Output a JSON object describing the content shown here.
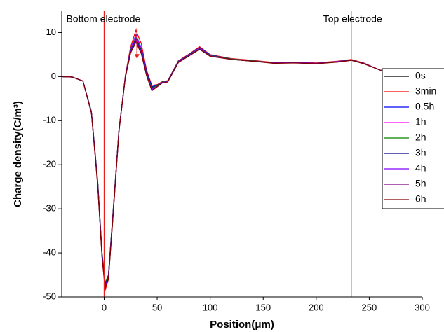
{
  "chart_data": {
    "type": "line",
    "xlabel": "Position(μm)",
    "ylabel": "Charge density(C/m³)",
    "xlim": [
      -40,
      300
    ],
    "ylim": [
      -50,
      15
    ],
    "xticks": [
      0,
      50,
      100,
      150,
      200,
      250,
      300
    ],
    "yticks": [
      -50,
      -40,
      -30,
      -20,
      -10,
      0,
      10
    ],
    "legend": "right",
    "annotations": [
      {
        "text": "Bottom electrode",
        "x": 0,
        "color": "#e8201c"
      },
      {
        "text": "Top electrode",
        "x": 233,
        "color": "#e8201c"
      }
    ],
    "arrow": {
      "x": 31,
      "y_from": 11,
      "y_to": 4,
      "color": "#e8201c"
    },
    "x": [
      -40,
      -30,
      -20,
      -12,
      -6,
      -2,
      1,
      4,
      8,
      14,
      20,
      25,
      30,
      35,
      40,
      45,
      50,
      55,
      60,
      70,
      80,
      90,
      100,
      120,
      140,
      160,
      180,
      200,
      220,
      233,
      245,
      260,
      280,
      300
    ],
    "series": [
      {
        "name": "0s",
        "color": "#000000",
        "values": [
          0,
          -0.1,
          -1,
          -8,
          -24,
          -40,
          -47,
          -45,
          -32,
          -12,
          0,
          6,
          9,
          6,
          1,
          -2.5,
          -2,
          -1.2,
          -1,
          3.5,
          5,
          6.5,
          4.8,
          4,
          3.6,
          3.1,
          3.2,
          3,
          3.4,
          3.8,
          3,
          1.5,
          0.4,
          0.2
        ]
      },
      {
        "name": "3min",
        "color": "#ff0000",
        "values": [
          0,
          -0.1,
          -1,
          -8.3,
          -25,
          -41,
          -48.5,
          -46,
          -33,
          -12.5,
          0.3,
          6.8,
          10.5,
          7.5,
          1.5,
          -2,
          -1.8,
          -1.1,
          -0.9,
          3.6,
          5.1,
          6.8,
          5,
          4.1,
          3.7,
          3.2,
          3.3,
          3.1,
          3.5,
          3.9,
          3.1,
          1.5,
          0.4,
          0.2
        ]
      },
      {
        "name": "0.5h",
        "color": "#0000ff",
        "values": [
          0,
          -0.1,
          -1,
          -8.1,
          -24.5,
          -40.5,
          -47.5,
          -45.5,
          -32.5,
          -12.2,
          0.1,
          6.3,
          9.5,
          6.5,
          1.2,
          -2.3,
          -1.9,
          -1.2,
          -1,
          3.5,
          5,
          6.6,
          4.9,
          4,
          3.6,
          3.1,
          3.2,
          3,
          3.4,
          3.8,
          3,
          1.5,
          0.4,
          0.2
        ]
      },
      {
        "name": "1h",
        "color": "#ff00ff",
        "values": [
          0,
          -0.1,
          -1,
          -8,
          -24.2,
          -40.2,
          -47,
          -45.2,
          -32.2,
          -12,
          0,
          6.1,
          9.2,
          6.2,
          0.8,
          -2.8,
          -2.1,
          -1.3,
          -1.1,
          3.4,
          4.9,
          6.5,
          4.8,
          4,
          3.6,
          3.1,
          3.2,
          3,
          3.4,
          3.8,
          3,
          1.5,
          0.4,
          0.2
        ]
      },
      {
        "name": "2h",
        "color": "#008000",
        "values": [
          0,
          -0.1,
          -1,
          -7.9,
          -24,
          -40,
          -46.8,
          -45,
          -32,
          -11.9,
          0,
          6,
          8.8,
          6,
          0.7,
          -2.6,
          -2,
          -1.2,
          -1,
          3.4,
          4.9,
          6.4,
          4.8,
          4,
          3.6,
          3.1,
          3.2,
          3,
          3.4,
          3.8,
          3,
          1.5,
          0.4,
          0.2
        ]
      },
      {
        "name": "3h",
        "color": "#000080",
        "values": [
          0,
          -0.1,
          -1,
          -8,
          -24.3,
          -40.3,
          -47.2,
          -45.3,
          -32.3,
          -12,
          -0.1,
          5.8,
          8.5,
          5.8,
          0.5,
          -3,
          -2.2,
          -1.3,
          -1.1,
          3.3,
          4.8,
          6.3,
          4.7,
          3.9,
          3.5,
          3.1,
          3.2,
          3,
          3.4,
          3.7,
          3,
          1.5,
          0.4,
          0.2
        ]
      },
      {
        "name": "4h",
        "color": "#8000ff",
        "values": [
          0,
          -0.1,
          -1,
          -8.1,
          -24.5,
          -40.5,
          -47.5,
          -45.5,
          -32.5,
          -12.1,
          -0.1,
          5.7,
          8.3,
          5.6,
          0.4,
          -2.9,
          -2.2,
          -1.3,
          -1.1,
          3.3,
          4.8,
          6.3,
          4.7,
          3.9,
          3.5,
          3.1,
          3.2,
          3,
          3.4,
          3.7,
          3,
          1.5,
          0.4,
          0.2
        ]
      },
      {
        "name": "5h",
        "color": "#800080",
        "values": [
          0,
          -0.1,
          -1,
          -8.2,
          -24.7,
          -40.8,
          -47.8,
          -45.8,
          -32.8,
          -12.2,
          -0.2,
          5.5,
          8,
          5.4,
          0.3,
          -3.1,
          -2.3,
          -1.4,
          -1.2,
          3.2,
          4.7,
          6.2,
          4.7,
          3.9,
          3.5,
          3.1,
          3.1,
          3,
          3.3,
          3.7,
          3,
          1.5,
          0.4,
          0.2
        ]
      },
      {
        "name": "6h",
        "color": "#800000",
        "values": [
          0,
          -0.1,
          -1,
          -8.3,
          -25,
          -41,
          -48,
          -46,
          -33,
          -12.3,
          -0.2,
          5.4,
          7.8,
          5.2,
          0.2,
          -3.2,
          -2.3,
          -1.4,
          -1.2,
          3.2,
          4.7,
          6.2,
          4.6,
          3.9,
          3.5,
          3,
          3.1,
          2.9,
          3.3,
          3.7,
          2.9,
          1.5,
          0.4,
          0.2
        ]
      }
    ]
  }
}
